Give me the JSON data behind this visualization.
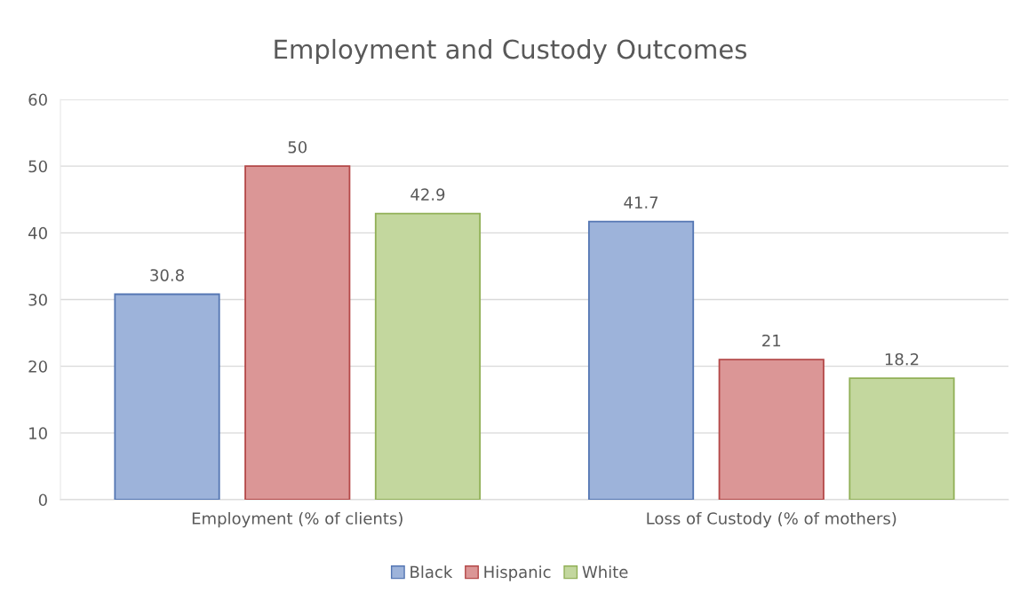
{
  "chart_data": {
    "type": "bar",
    "title": "Employment and Custody Outcomes",
    "categories": [
      "Employment (% of clients)",
      "Loss of Custody (% of mothers)"
    ],
    "series": [
      {
        "name": "Black",
        "color": "#9db3da",
        "values": [
          30.8,
          41.7
        ]
      },
      {
        "name": "Hispanic",
        "color": "#db9696",
        "values": [
          50,
          21
        ]
      },
      {
        "name": "White",
        "color": "#c3d79e",
        "values": [
          42.9,
          18.2
        ]
      }
    ],
    "ylim": [
      0,
      60
    ],
    "yticks": [
      0,
      10,
      20,
      30,
      40,
      50,
      60
    ],
    "grid": "y",
    "legend": "bottom",
    "data_labels": true
  }
}
